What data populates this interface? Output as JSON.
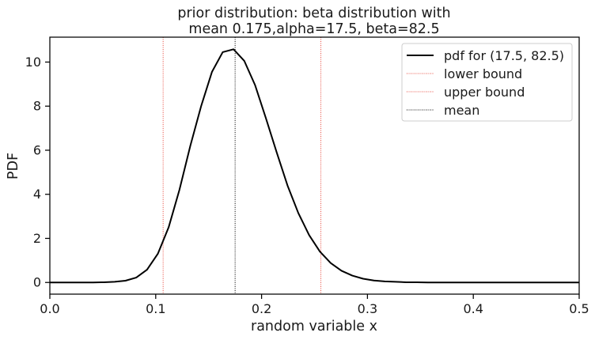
{
  "chart_data": {
    "type": "line",
    "title_line1": "prior distribution: beta distribution with",
    "title_line2": "mean 0.175,alpha=17.5, beta=82.5",
    "xlabel": "random variable x",
    "ylabel": "PDF",
    "xlim": [
      0.0,
      0.5
    ],
    "ylim": [
      -0.53,
      11.13
    ],
    "xticks": [
      0.0,
      0.1,
      0.2,
      0.3,
      0.4,
      0.5
    ],
    "xtick_labels": [
      "0.0",
      "0.1",
      "0.2",
      "0.3",
      "0.4",
      "0.5"
    ],
    "yticks": [
      0,
      2,
      4,
      6,
      8,
      10
    ],
    "ytick_labels": [
      "0",
      "2",
      "4",
      "6",
      "8",
      "10"
    ],
    "grid": false,
    "legend_position": "upper right",
    "series": [
      {
        "name": "pdf for (17.5, 82.5)",
        "color": "#000000",
        "style": "solid",
        "x": [
          0.0,
          0.0102,
          0.0204,
          0.0306,
          0.0408,
          0.051,
          0.0612,
          0.0714,
          0.0816,
          0.0918,
          0.102,
          0.1122,
          0.1224,
          0.1327,
          0.1429,
          0.1531,
          0.1633,
          0.1735,
          0.1837,
          0.1939,
          0.2041,
          0.2143,
          0.2245,
          0.2347,
          0.2449,
          0.2551,
          0.2653,
          0.2755,
          0.2857,
          0.2959,
          0.3061,
          0.3163,
          0.3265,
          0.3367,
          0.3469,
          0.3571,
          0.3673,
          0.3776,
          0.3878,
          0.398,
          0.4082,
          0.4184,
          0.4286,
          0.4388,
          0.449,
          0.4592,
          0.4694,
          0.4796,
          0.4898,
          0.5
        ],
        "y": [
          0.0,
          0.0,
          0.0,
          0.0,
          0.0,
          0.01,
          0.03,
          0.08,
          0.22,
          0.58,
          1.3,
          2.5,
          4.2,
          6.2,
          8.0,
          9.55,
          10.45,
          10.58,
          10.05,
          8.95,
          7.45,
          5.9,
          4.4,
          3.15,
          2.15,
          1.4,
          0.88,
          0.53,
          0.31,
          0.17,
          0.09,
          0.05,
          0.03,
          0.01,
          0.01,
          0.0,
          0.0,
          0.0,
          0.0,
          0.0,
          0.0,
          0.0,
          0.0,
          0.0,
          0.0,
          0.0,
          0.0,
          0.0,
          0.0,
          0.0
        ]
      }
    ],
    "vlines": [
      {
        "name": "lower bound",
        "x": 0.107,
        "color": "#e8483c",
        "style": "dotted"
      },
      {
        "name": "upper bound",
        "x": 0.256,
        "color": "#e8483c",
        "style": "dotted"
      },
      {
        "name": "mean",
        "x": 0.175,
        "color": "#000000",
        "style": "dotted"
      }
    ]
  }
}
